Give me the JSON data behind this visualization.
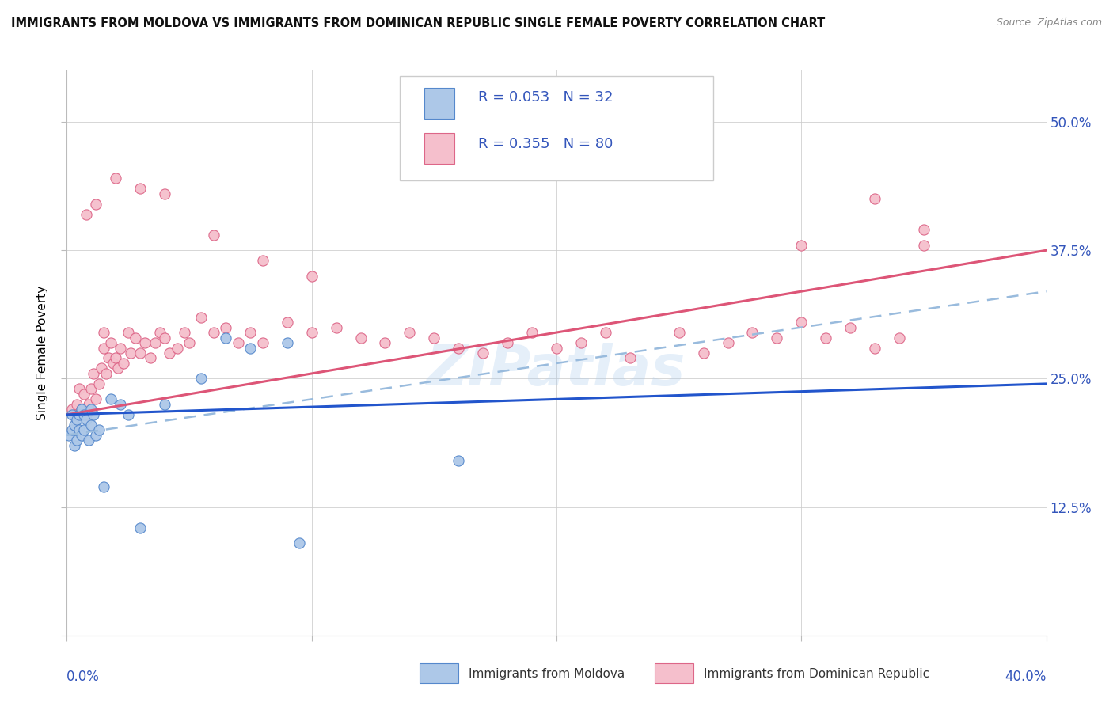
{
  "title": "IMMIGRANTS FROM MOLDOVA VS IMMIGRANTS FROM DOMINICAN REPUBLIC SINGLE FEMALE POVERTY CORRELATION CHART",
  "source": "Source: ZipAtlas.com",
  "ylabel": "Single Female Poverty",
  "xlim": [
    0.0,
    0.4
  ],
  "ylim": [
    0.0,
    0.55
  ],
  "moldova_color": "#adc8e8",
  "moldova_edge": "#5588cc",
  "dominican_color": "#f5bfcc",
  "dominican_edge": "#dd6688",
  "moldova_R": "0.053",
  "moldova_N": "32",
  "dominican_R": "0.355",
  "dominican_N": "80",
  "legend_R_color": "#3355bb",
  "legend_N_color": "#cc2222",
  "watermark": "ZIPatlas",
  "mol_line_color": "#2255cc",
  "dom_line_color": "#dd5577",
  "dash_line_color": "#99bbdd",
  "right_ytick_labels": [
    "12.5%",
    "25.0%",
    "37.5%",
    "50.0%"
  ],
  "right_ytick_vals": [
    0.125,
    0.25,
    0.375,
    0.5
  ],
  "right_ytick_color": "#3355bb",
  "grid_color": "#cccccc",
  "mol_x": [
    0.001,
    0.002,
    0.002,
    0.003,
    0.003,
    0.004,
    0.004,
    0.005,
    0.005,
    0.006,
    0.006,
    0.007,
    0.007,
    0.008,
    0.009,
    0.01,
    0.01,
    0.011,
    0.012,
    0.013,
    0.015,
    0.018,
    0.022,
    0.025,
    0.03,
    0.04,
    0.055,
    0.065,
    0.075,
    0.09,
    0.095,
    0.16
  ],
  "mol_y": [
    0.195,
    0.2,
    0.215,
    0.185,
    0.205,
    0.19,
    0.21,
    0.2,
    0.215,
    0.195,
    0.22,
    0.2,
    0.215,
    0.21,
    0.19,
    0.205,
    0.22,
    0.215,
    0.195,
    0.2,
    0.145,
    0.23,
    0.225,
    0.215,
    0.105,
    0.225,
    0.25,
    0.29,
    0.28,
    0.285,
    0.09,
    0.17
  ],
  "dom_x": [
    0.002,
    0.003,
    0.004,
    0.005,
    0.005,
    0.006,
    0.007,
    0.008,
    0.009,
    0.01,
    0.011,
    0.012,
    0.013,
    0.014,
    0.015,
    0.015,
    0.016,
    0.017,
    0.018,
    0.019,
    0.02,
    0.021,
    0.022,
    0.023,
    0.025,
    0.026,
    0.028,
    0.03,
    0.032,
    0.034,
    0.036,
    0.038,
    0.04,
    0.042,
    0.045,
    0.048,
    0.05,
    0.055,
    0.06,
    0.065,
    0.07,
    0.075,
    0.08,
    0.09,
    0.1,
    0.11,
    0.12,
    0.13,
    0.14,
    0.15,
    0.16,
    0.17,
    0.18,
    0.19,
    0.2,
    0.21,
    0.22,
    0.23,
    0.25,
    0.26,
    0.27,
    0.28,
    0.29,
    0.3,
    0.31,
    0.32,
    0.33,
    0.34,
    0.35,
    0.35,
    0.008,
    0.012,
    0.02,
    0.03,
    0.04,
    0.06,
    0.08,
    0.1,
    0.3,
    0.33
  ],
  "dom_y": [
    0.22,
    0.215,
    0.225,
    0.215,
    0.24,
    0.22,
    0.235,
    0.215,
    0.225,
    0.24,
    0.255,
    0.23,
    0.245,
    0.26,
    0.28,
    0.295,
    0.255,
    0.27,
    0.285,
    0.265,
    0.27,
    0.26,
    0.28,
    0.265,
    0.295,
    0.275,
    0.29,
    0.275,
    0.285,
    0.27,
    0.285,
    0.295,
    0.29,
    0.275,
    0.28,
    0.295,
    0.285,
    0.31,
    0.295,
    0.3,
    0.285,
    0.295,
    0.285,
    0.305,
    0.295,
    0.3,
    0.29,
    0.285,
    0.295,
    0.29,
    0.28,
    0.275,
    0.285,
    0.295,
    0.28,
    0.285,
    0.295,
    0.27,
    0.295,
    0.275,
    0.285,
    0.295,
    0.29,
    0.305,
    0.29,
    0.3,
    0.28,
    0.29,
    0.38,
    0.395,
    0.41,
    0.42,
    0.445,
    0.435,
    0.43,
    0.39,
    0.365,
    0.35,
    0.38,
    0.425
  ],
  "mol_line_x": [
    0.0,
    0.4
  ],
  "mol_line_y": [
    0.215,
    0.245
  ],
  "dom_line_x": [
    0.0,
    0.4
  ],
  "dom_line_y": [
    0.215,
    0.375
  ],
  "dash_line_x": [
    0.0,
    0.4
  ],
  "dash_line_y": [
    0.195,
    0.335
  ]
}
